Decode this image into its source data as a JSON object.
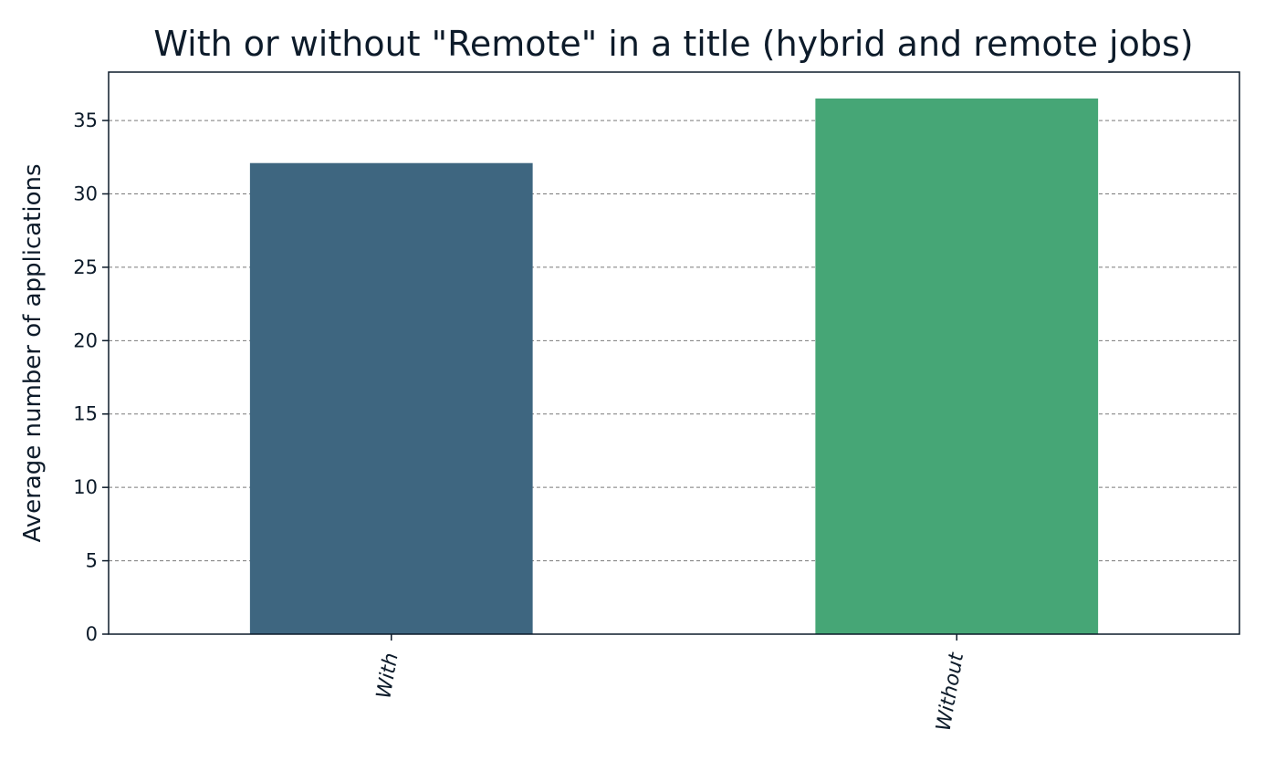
{
  "chart_data": {
    "type": "bar",
    "title": "With or without \"Remote\" in a title (hybrid and remote jobs)",
    "xlabel": "",
    "ylabel": "Average number of applications",
    "categories": [
      "With",
      "Without"
    ],
    "values": [
      32.1,
      36.5
    ],
    "colors": [
      "#3e6680",
      "#46a676"
    ],
    "ylim": [
      0,
      38.3
    ],
    "yticks": [
      0,
      5,
      10,
      15,
      20,
      25,
      30,
      35
    ],
    "grid": "horizontal dashed",
    "legend": "none"
  }
}
